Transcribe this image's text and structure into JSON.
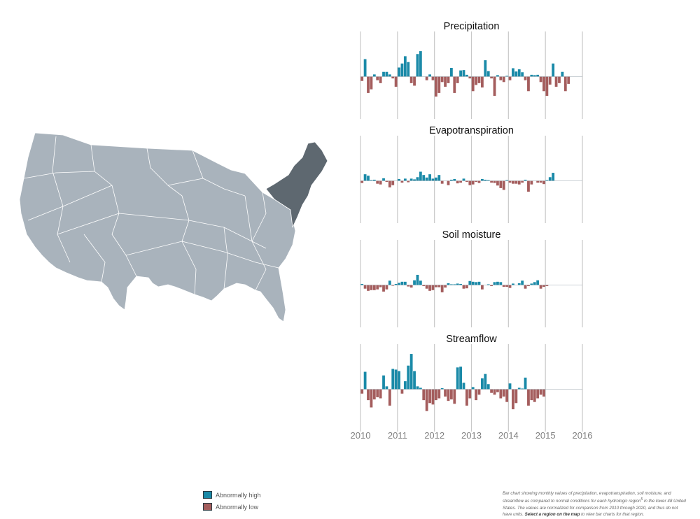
{
  "colors": {
    "high": "#1a8aa8",
    "low": "#a45d5d",
    "map_fill": "#a9b3bc",
    "map_selected": "#5e6870",
    "grid": "#c8c8c8",
    "axis": "#808080"
  },
  "map": {
    "name": "Lower 48 United States hydrologic regions",
    "selected_region": "Northeast"
  },
  "legend": {
    "high_label": "Abnormally high",
    "low_label": "Abnormally low"
  },
  "caption": {
    "text": "Bar chart showing monthly values of precipitation, evapotranspiration, soil moisture, and streamflow as compared to normal conditions for each hydrologic region",
    "superscript": "5",
    "text2": " in the lower 48 United States. The values are normalized for comparison from 2010 through 2020, and thus do not have units. ",
    "link_text": "Select a region on the map",
    "text3": " to view bar charts for that region."
  },
  "chart_data": [
    {
      "type": "bar",
      "title": "Precipitation",
      "ylim": [
        -1,
        1
      ],
      "x_start": 2010,
      "months": 72,
      "values": [
        -0.12,
        0.48,
        -0.45,
        -0.35,
        0.06,
        -0.1,
        -0.18,
        0.13,
        0.13,
        0.06,
        -0.05,
        -0.28,
        0.25,
        0.36,
        0.56,
        0.4,
        -0.18,
        -0.25,
        0.62,
        0.7,
        0.0,
        -0.1,
        0.06,
        -0.1,
        -0.55,
        -0.45,
        -0.15,
        -0.28,
        -0.18,
        0.24,
        -0.45,
        -0.18,
        0.17,
        0.18,
        0.05,
        -0.05,
        -0.4,
        -0.23,
        -0.18,
        -0.3,
        0.45,
        0.15,
        -0.05,
        -0.53,
        0.04,
        -0.1,
        -0.15,
        0.02,
        -0.1,
        0.23,
        0.14,
        0.2,
        0.12,
        -0.1,
        -0.4,
        0.05,
        0.04,
        0.05,
        -0.15,
        -0.4,
        -0.53,
        -0.22,
        0.36,
        -0.28,
        -0.18,
        0.13,
        -0.4,
        -0.2,
        0.0,
        0.0,
        0.0,
        0.0
      ]
    },
    {
      "type": "bar",
      "title": "Evapotranspiration",
      "ylim": [
        -1,
        1
      ],
      "x_start": 2010,
      "months": 72,
      "values": [
        -0.06,
        0.18,
        0.14,
        0.02,
        0.03,
        -0.08,
        -0.1,
        0.07,
        -0.03,
        -0.18,
        -0.12,
        0.0,
        0.05,
        -0.05,
        0.06,
        -0.04,
        0.06,
        0.04,
        0.1,
        0.25,
        0.16,
        0.09,
        0.18,
        0.06,
        0.09,
        0.16,
        -0.08,
        0.0,
        -0.12,
        0.03,
        0.05,
        -0.07,
        -0.05,
        0.06,
        -0.03,
        -0.12,
        -0.1,
        -0.03,
        -0.06,
        0.05,
        0.03,
        0.02,
        -0.05,
        -0.06,
        -0.13,
        -0.2,
        -0.25,
        0.02,
        -0.05,
        -0.08,
        -0.08,
        -0.1,
        -0.05,
        0.03,
        -0.3,
        -0.1,
        0.0,
        -0.05,
        -0.05,
        -0.09,
        0.02,
        0.1,
        0.22,
        0.0,
        0.0,
        0.0,
        0.0,
        0.0,
        0.0,
        0.0,
        0.0,
        0.0
      ]
    },
    {
      "type": "bar",
      "title": "Soil moisture",
      "ylim": [
        -1,
        1
      ],
      "x_start": 2010,
      "months": 72,
      "values": [
        0.03,
        -0.1,
        -0.16,
        -0.14,
        -0.14,
        -0.12,
        -0.06,
        -0.18,
        -0.12,
        0.12,
        -0.02,
        0.03,
        0.06,
        0.09,
        0.09,
        -0.04,
        -0.07,
        0.13,
        0.28,
        0.12,
        -0.03,
        -0.1,
        -0.16,
        -0.14,
        -0.06,
        -0.06,
        -0.2,
        -0.07,
        0.05,
        0.02,
        0.02,
        0.04,
        0.03,
        -0.1,
        -0.09,
        0.11,
        0.09,
        0.08,
        0.09,
        -0.12,
        0.0,
        0.02,
        -0.03,
        0.08,
        0.09,
        0.08,
        -0.05,
        -0.05,
        -0.08,
        0.04,
        0.0,
        0.05,
        0.12,
        -0.1,
        -0.03,
        0.04,
        0.08,
        0.13,
        -0.1,
        -0.05,
        -0.03,
        0.0,
        0.0,
        0.0,
        0.0,
        0.0,
        0.0,
        0.0,
        0.0,
        0.0,
        0.0,
        0.0
      ]
    },
    {
      "type": "bar",
      "title": "Streamflow",
      "ylim": [
        -1,
        1
      ],
      "x_start": 2010,
      "months": 72,
      "values": [
        -0.12,
        0.48,
        -0.3,
        -0.5,
        -0.28,
        -0.22,
        -0.25,
        0.38,
        0.08,
        -0.45,
        0.56,
        0.54,
        0.5,
        -0.12,
        0.22,
        0.65,
        0.97,
        0.5,
        0.08,
        0.04,
        -0.3,
        -0.6,
        -0.38,
        -0.42,
        -0.3,
        -0.25,
        0.03,
        -0.2,
        -0.32,
        -0.28,
        -0.4,
        0.6,
        0.62,
        0.18,
        -0.45,
        -0.25,
        0.06,
        -0.3,
        -0.15,
        0.3,
        0.42,
        0.14,
        -0.1,
        -0.15,
        -0.08,
        -0.25,
        -0.2,
        -0.35,
        0.16,
        -0.55,
        -0.38,
        0.04,
        0.02,
        0.32,
        -0.45,
        -0.3,
        -0.35,
        -0.25,
        -0.15,
        -0.2,
        0.0,
        0.0,
        0.0,
        0.0,
        0.0,
        0.0,
        0.0,
        0.0,
        0.0,
        0.0,
        0.0,
        0.0
      ]
    }
  ],
  "x_axis": {
    "tick_labels": [
      "2010",
      "2011",
      "2012",
      "2013",
      "2014",
      "2015",
      "2016"
    ]
  }
}
